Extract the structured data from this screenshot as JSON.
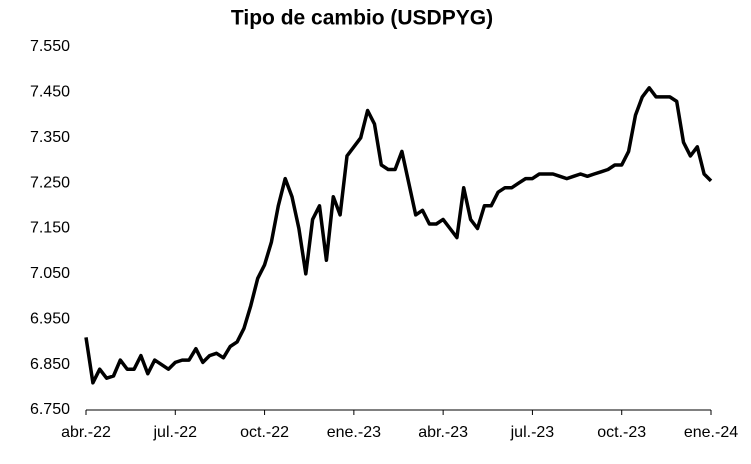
{
  "chart_data": {
    "type": "line",
    "title": "Tipo de cambio (USDPYG)",
    "categories": [
      "abr.-22",
      null,
      null,
      null,
      null,
      null,
      null,
      null,
      null,
      null,
      null,
      null,
      null,
      "jul.-22",
      null,
      null,
      null,
      null,
      null,
      null,
      null,
      null,
      null,
      null,
      null,
      null,
      "oct.-22",
      null,
      null,
      null,
      null,
      null,
      null,
      null,
      null,
      null,
      null,
      null,
      null,
      "ene.-23",
      null,
      null,
      null,
      null,
      null,
      null,
      null,
      null,
      null,
      null,
      null,
      null,
      "abr.-23",
      null,
      null,
      null,
      null,
      null,
      null,
      null,
      null,
      null,
      null,
      null,
      null,
      "jul.-23",
      null,
      null,
      null,
      null,
      null,
      null,
      null,
      null,
      null,
      null,
      null,
      null,
      "oct.-23",
      null,
      null,
      null,
      null,
      null,
      null,
      null,
      null,
      null,
      null,
      null,
      null,
      "ene.-24"
    ],
    "series": [
      {
        "name": "USDPYG",
        "color": "#000000",
        "values": [
          6910,
          6810,
          6840,
          6820,
          6825,
          6860,
          6840,
          6840,
          6870,
          6830,
          6860,
          6850,
          6840,
          6855,
          6860,
          6860,
          6885,
          6855,
          6870,
          6875,
          6865,
          6890,
          6900,
          6930,
          6980,
          7040,
          7070,
          7120,
          7200,
          7260,
          7220,
          7150,
          7050,
          7170,
          7200,
          7080,
          7220,
          7180,
          7310,
          7330,
          7350,
          7410,
          7380,
          7290,
          7280,
          7280,
          7320,
          7250,
          7180,
          7190,
          7160,
          7160,
          7170,
          7150,
          7130,
          7240,
          7170,
          7150,
          7200,
          7200,
          7230,
          7240,
          7240,
          7250,
          7260,
          7260,
          7270,
          7270,
          7270,
          7265,
          7260,
          7265,
          7270,
          7265,
          7270,
          7275,
          7280,
          7290,
          7290,
          7320,
          7400,
          7440,
          7460,
          7440,
          7440,
          7440,
          7430,
          7340,
          7310,
          7330,
          7270,
          7255
        ]
      }
    ],
    "ylim": [
      6750,
      7550
    ],
    "yticks": [
      {
        "value": 6750,
        "label": "6.750"
      },
      {
        "value": 6850,
        "label": "6.850"
      },
      {
        "value": 6950,
        "label": "6.950"
      },
      {
        "value": 7050,
        "label": "7.050"
      },
      {
        "value": 7150,
        "label": "7.150"
      },
      {
        "value": 7250,
        "label": "7.250"
      },
      {
        "value": 7350,
        "label": "7.350"
      },
      {
        "value": 7450,
        "label": "7.450"
      },
      {
        "value": 7550,
        "label": "7.550"
      }
    ],
    "grid": false
  }
}
